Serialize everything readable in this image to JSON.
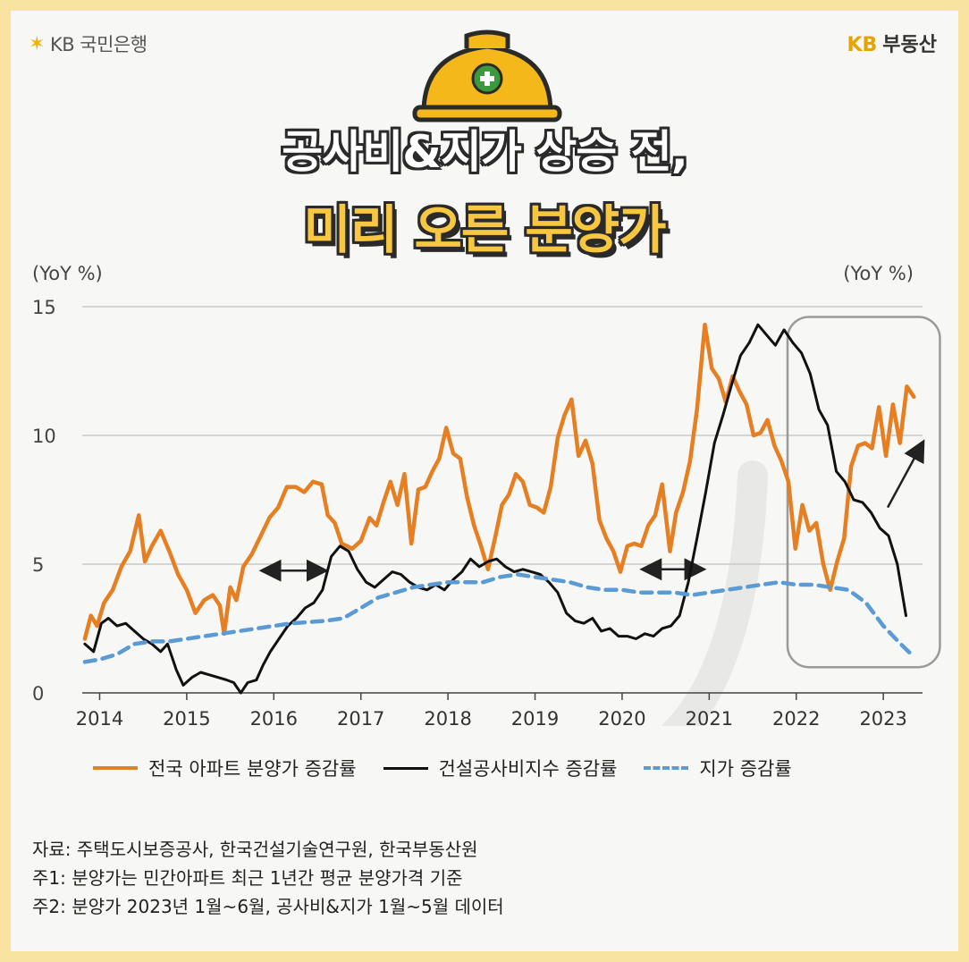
{
  "brand": {
    "left_logo": "KB 국민은행",
    "right_logo_kb": "KB",
    "right_logo_text": "부동산"
  },
  "title": {
    "line1": "공사비&지가 상승 전,",
    "line2": "미리 오른 분양가"
  },
  "colors": {
    "apartment": "#e67e22",
    "construction": "#111111",
    "land": "#5b9bd5",
    "accent": "#f7c742"
  },
  "icons": [
    "helmet-icon",
    "plus-icon",
    "arrow-icon"
  ],
  "footnotes": [
    "자료: 주택도시보증공사, 한국건설기술연구원, 한국부동산원",
    "주1: 분양가는 민간아파트 최근 1년간 평균 분양가격 기준",
    "주2: 분양가 2023년 1월~6월, 공사비&지가 1월~5월 데이터"
  ],
  "chart_data": {
    "type": "line",
    "ylabel_left": "(YoY %)",
    "ylabel_right": "(YoY %)",
    "ylim": [
      0,
      15
    ],
    "yticks": [
      "0",
      "5",
      "10",
      "15"
    ],
    "xlim": [
      2013.8,
      2023.45
    ],
    "xticks": [
      "2014",
      "2015",
      "2016",
      "2017",
      "2018",
      "2019",
      "2020",
      "2021",
      "2022",
      "2023"
    ],
    "grid": true,
    "legend_position": "bottom",
    "series": [
      {
        "name": "전국 아파트 분양가 증감률",
        "points": [
          [
            2013.83,
            2.1
          ],
          [
            2013.9,
            3.0
          ],
          [
            2013.97,
            2.6
          ],
          [
            2014.05,
            3.5
          ],
          [
            2014.15,
            4.0
          ],
          [
            2014.25,
            4.9
          ],
          [
            2014.35,
            5.5
          ],
          [
            2014.45,
            6.9
          ],
          [
            2014.52,
            5.1
          ],
          [
            2014.6,
            5.7
          ],
          [
            2014.7,
            6.3
          ],
          [
            2014.8,
            5.5
          ],
          [
            2014.9,
            4.6
          ],
          [
            2015.0,
            4.0
          ],
          [
            2015.1,
            3.1
          ],
          [
            2015.2,
            3.6
          ],
          [
            2015.3,
            3.8
          ],
          [
            2015.38,
            3.4
          ],
          [
            2015.43,
            2.3
          ],
          [
            2015.5,
            4.1
          ],
          [
            2015.57,
            3.6
          ],
          [
            2015.65,
            4.9
          ],
          [
            2015.75,
            5.4
          ],
          [
            2015.85,
            6.1
          ],
          [
            2015.95,
            6.8
          ],
          [
            2016.05,
            7.2
          ],
          [
            2016.15,
            8.0
          ],
          [
            2016.25,
            8.0
          ],
          [
            2016.35,
            7.8
          ],
          [
            2016.45,
            8.2
          ],
          [
            2016.55,
            8.1
          ],
          [
            2016.62,
            6.9
          ],
          [
            2016.7,
            6.6
          ],
          [
            2016.78,
            5.8
          ],
          [
            2016.9,
            5.6
          ],
          [
            2017.0,
            5.9
          ],
          [
            2017.1,
            6.8
          ],
          [
            2017.18,
            6.5
          ],
          [
            2017.26,
            7.4
          ],
          [
            2017.34,
            8.2
          ],
          [
            2017.42,
            7.3
          ],
          [
            2017.5,
            8.5
          ],
          [
            2017.58,
            5.8
          ],
          [
            2017.66,
            7.9
          ],
          [
            2017.74,
            8.0
          ],
          [
            2017.82,
            8.6
          ],
          [
            2017.9,
            9.1
          ],
          [
            2017.98,
            10.3
          ],
          [
            2018.06,
            9.3
          ],
          [
            2018.14,
            9.1
          ],
          [
            2018.22,
            7.6
          ],
          [
            2018.3,
            6.5
          ],
          [
            2018.38,
            5.7
          ],
          [
            2018.46,
            4.8
          ],
          [
            2018.54,
            6.0
          ],
          [
            2018.62,
            7.3
          ],
          [
            2018.7,
            7.7
          ],
          [
            2018.78,
            8.5
          ],
          [
            2018.86,
            8.2
          ],
          [
            2018.94,
            7.3
          ],
          [
            2019.02,
            7.2
          ],
          [
            2019.1,
            7.0
          ],
          [
            2019.18,
            8.0
          ],
          [
            2019.26,
            9.9
          ],
          [
            2019.34,
            10.8
          ],
          [
            2019.42,
            11.4
          ],
          [
            2019.5,
            9.2
          ],
          [
            2019.58,
            9.8
          ],
          [
            2019.66,
            8.9
          ],
          [
            2019.74,
            6.7
          ],
          [
            2019.82,
            6.0
          ],
          [
            2019.9,
            5.5
          ],
          [
            2019.98,
            4.7
          ],
          [
            2020.06,
            5.7
          ],
          [
            2020.14,
            5.8
          ],
          [
            2020.22,
            5.7
          ],
          [
            2020.3,
            6.5
          ],
          [
            2020.38,
            6.9
          ],
          [
            2020.46,
            8.1
          ],
          [
            2020.55,
            5.5
          ],
          [
            2020.62,
            7.0
          ],
          [
            2020.7,
            7.8
          ],
          [
            2020.78,
            9.0
          ],
          [
            2020.86,
            11.0
          ],
          [
            2020.95,
            14.3
          ],
          [
            2021.03,
            12.6
          ],
          [
            2021.11,
            12.2
          ],
          [
            2021.19,
            11.3
          ],
          [
            2021.27,
            12.3
          ],
          [
            2021.35,
            11.7
          ],
          [
            2021.43,
            11.2
          ],
          [
            2021.51,
            10.0
          ],
          [
            2021.59,
            10.1
          ],
          [
            2021.67,
            10.6
          ],
          [
            2021.75,
            9.6
          ],
          [
            2021.83,
            9.0
          ],
          [
            2021.91,
            8.2
          ],
          [
            2021.99,
            5.6
          ],
          [
            2022.07,
            7.3
          ],
          [
            2022.15,
            6.3
          ],
          [
            2022.23,
            6.6
          ],
          [
            2022.31,
            5.0
          ],
          [
            2022.39,
            4.0
          ],
          [
            2022.47,
            5.1
          ],
          [
            2022.55,
            6.0
          ],
          [
            2022.63,
            8.8
          ],
          [
            2022.71,
            9.6
          ],
          [
            2022.79,
            9.7
          ],
          [
            2022.87,
            9.5
          ],
          [
            2022.95,
            11.1
          ],
          [
            2023.03,
            9.2
          ],
          [
            2023.11,
            11.2
          ],
          [
            2023.19,
            9.7
          ],
          [
            2023.27,
            11.9
          ],
          [
            2023.35,
            11.5
          ]
        ]
      },
      {
        "name": "건설공사비지수 증감률",
        "points": [
          [
            2013.83,
            1.9
          ],
          [
            2013.93,
            1.6
          ],
          [
            2014.02,
            2.7
          ],
          [
            2014.1,
            2.9
          ],
          [
            2014.2,
            2.6
          ],
          [
            2014.3,
            2.7
          ],
          [
            2014.4,
            2.4
          ],
          [
            2014.5,
            2.1
          ],
          [
            2014.6,
            1.9
          ],
          [
            2014.7,
            1.6
          ],
          [
            2014.78,
            1.9
          ],
          [
            2014.88,
            0.9
          ],
          [
            2014.96,
            0.3
          ],
          [
            2015.06,
            0.6
          ],
          [
            2015.16,
            0.8
          ],
          [
            2015.26,
            0.7
          ],
          [
            2015.36,
            0.6
          ],
          [
            2015.46,
            0.5
          ],
          [
            2015.54,
            0.4
          ],
          [
            2015.62,
            0.0
          ],
          [
            2015.7,
            0.4
          ],
          [
            2015.8,
            0.5
          ],
          [
            2015.88,
            1.1
          ],
          [
            2015.96,
            1.6
          ],
          [
            2016.06,
            2.1
          ],
          [
            2016.16,
            2.6
          ],
          [
            2016.26,
            2.9
          ],
          [
            2016.36,
            3.3
          ],
          [
            2016.46,
            3.5
          ],
          [
            2016.56,
            4.0
          ],
          [
            2016.66,
            5.3
          ],
          [
            2016.76,
            5.7
          ],
          [
            2016.86,
            5.5
          ],
          [
            2016.96,
            4.8
          ],
          [
            2017.06,
            4.3
          ],
          [
            2017.16,
            4.1
          ],
          [
            2017.26,
            4.4
          ],
          [
            2017.36,
            4.7
          ],
          [
            2017.46,
            4.6
          ],
          [
            2017.56,
            4.3
          ],
          [
            2017.66,
            4.1
          ],
          [
            2017.76,
            4.0
          ],
          [
            2017.86,
            4.2
          ],
          [
            2017.96,
            4.0
          ],
          [
            2018.06,
            4.4
          ],
          [
            2018.16,
            4.7
          ],
          [
            2018.26,
            5.2
          ],
          [
            2018.36,
            4.9
          ],
          [
            2018.46,
            5.1
          ],
          [
            2018.56,
            5.2
          ],
          [
            2018.66,
            4.9
          ],
          [
            2018.76,
            4.7
          ],
          [
            2018.86,
            4.8
          ],
          [
            2018.96,
            4.7
          ],
          [
            2019.06,
            4.6
          ],
          [
            2019.16,
            4.3
          ],
          [
            2019.26,
            3.9
          ],
          [
            2019.36,
            3.1
          ],
          [
            2019.46,
            2.8
          ],
          [
            2019.56,
            2.7
          ],
          [
            2019.66,
            2.9
          ],
          [
            2019.76,
            2.4
          ],
          [
            2019.86,
            2.5
          ],
          [
            2019.96,
            2.2
          ],
          [
            2020.06,
            2.2
          ],
          [
            2020.16,
            2.1
          ],
          [
            2020.26,
            2.3
          ],
          [
            2020.36,
            2.2
          ],
          [
            2020.46,
            2.5
          ],
          [
            2020.56,
            2.6
          ],
          [
            2020.66,
            3.0
          ],
          [
            2020.76,
            4.3
          ],
          [
            2020.86,
            6.0
          ],
          [
            2020.96,
            7.8
          ],
          [
            2021.06,
            9.7
          ],
          [
            2021.16,
            10.8
          ],
          [
            2021.26,
            12.0
          ],
          [
            2021.36,
            13.1
          ],
          [
            2021.46,
            13.6
          ],
          [
            2021.56,
            14.3
          ],
          [
            2021.66,
            13.9
          ],
          [
            2021.76,
            13.5
          ],
          [
            2021.86,
            14.1
          ],
          [
            2021.96,
            13.6
          ],
          [
            2022.06,
            13.2
          ],
          [
            2022.16,
            12.4
          ],
          [
            2022.26,
            11.0
          ],
          [
            2022.36,
            10.4
          ],
          [
            2022.46,
            8.6
          ],
          [
            2022.56,
            8.2
          ],
          [
            2022.66,
            7.5
          ],
          [
            2022.76,
            7.4
          ],
          [
            2022.86,
            7.0
          ],
          [
            2022.96,
            6.4
          ],
          [
            2023.06,
            6.1
          ],
          [
            2023.16,
            5.0
          ],
          [
            2023.26,
            3.0
          ]
        ]
      },
      {
        "name": "지가 증감률",
        "points": [
          [
            2013.83,
            1.2
          ],
          [
            2014.0,
            1.3
          ],
          [
            2014.2,
            1.5
          ],
          [
            2014.4,
            1.9
          ],
          [
            2014.6,
            2.0
          ],
          [
            2014.8,
            2.0
          ],
          [
            2015.0,
            2.1
          ],
          [
            2015.2,
            2.2
          ],
          [
            2015.4,
            2.3
          ],
          [
            2015.6,
            2.4
          ],
          [
            2015.8,
            2.5
          ],
          [
            2016.0,
            2.6
          ],
          [
            2016.2,
            2.7
          ],
          [
            2016.4,
            2.75
          ],
          [
            2016.6,
            2.8
          ],
          [
            2016.8,
            2.9
          ],
          [
            2017.0,
            3.3
          ],
          [
            2017.2,
            3.7
          ],
          [
            2017.4,
            3.9
          ],
          [
            2017.6,
            4.1
          ],
          [
            2017.8,
            4.2
          ],
          [
            2018.0,
            4.3
          ],
          [
            2018.2,
            4.3
          ],
          [
            2018.4,
            4.3
          ],
          [
            2018.6,
            4.5
          ],
          [
            2018.8,
            4.6
          ],
          [
            2019.0,
            4.5
          ],
          [
            2019.2,
            4.4
          ],
          [
            2019.4,
            4.3
          ],
          [
            2019.6,
            4.1
          ],
          [
            2019.8,
            4.0
          ],
          [
            2020.0,
            4.0
          ],
          [
            2020.2,
            3.9
          ],
          [
            2020.4,
            3.9
          ],
          [
            2020.6,
            3.9
          ],
          [
            2020.8,
            3.8
          ],
          [
            2021.0,
            3.9
          ],
          [
            2021.2,
            4.0
          ],
          [
            2021.4,
            4.1
          ],
          [
            2021.6,
            4.2
          ],
          [
            2021.8,
            4.3
          ],
          [
            2022.0,
            4.2
          ],
          [
            2022.2,
            4.2
          ],
          [
            2022.4,
            4.1
          ],
          [
            2022.6,
            4.0
          ],
          [
            2022.8,
            3.5
          ],
          [
            2023.0,
            2.6
          ],
          [
            2023.2,
            1.9
          ],
          [
            2023.35,
            1.4
          ]
        ]
      }
    ]
  }
}
